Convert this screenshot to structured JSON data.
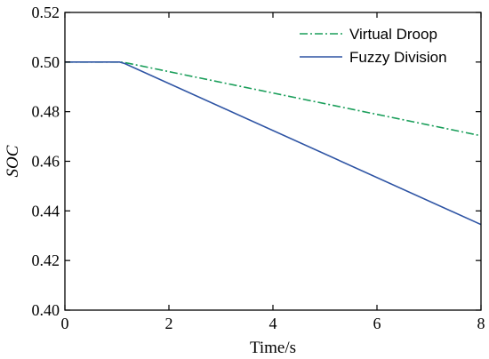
{
  "chart_data": {
    "type": "line",
    "xlabel": "Time/s",
    "ylabel": "SOC",
    "xlim": [
      0,
      8
    ],
    "ylim": [
      0.4,
      0.52
    ],
    "x_ticks": [
      0,
      2,
      4,
      6,
      8
    ],
    "y_ticks": [
      0.4,
      0.42,
      0.44,
      0.46,
      0.48,
      0.5,
      0.52
    ],
    "x_tick_labels": [
      "0",
      "2",
      "4",
      "6",
      "8"
    ],
    "y_tick_labels": [
      "0.40",
      "0.42",
      "0.44",
      "0.46",
      "0.48",
      "0.50",
      "0.52"
    ],
    "grid": false,
    "legend_position": "top-right",
    "series": [
      {
        "name": "Virtual Droop",
        "color": "#1a9e5a",
        "dash": "dash-dot",
        "x": [
          0,
          1.05,
          1.15,
          8
        ],
        "y": [
          0.5,
          0.5,
          0.4998,
          0.4703
        ]
      },
      {
        "name": "Fuzzy Division",
        "color": "#2e54a4",
        "dash": "solid",
        "x": [
          0,
          1.05,
          1.15,
          8
        ],
        "y": [
          0.5,
          0.5,
          0.4994,
          0.4345
        ]
      }
    ]
  }
}
